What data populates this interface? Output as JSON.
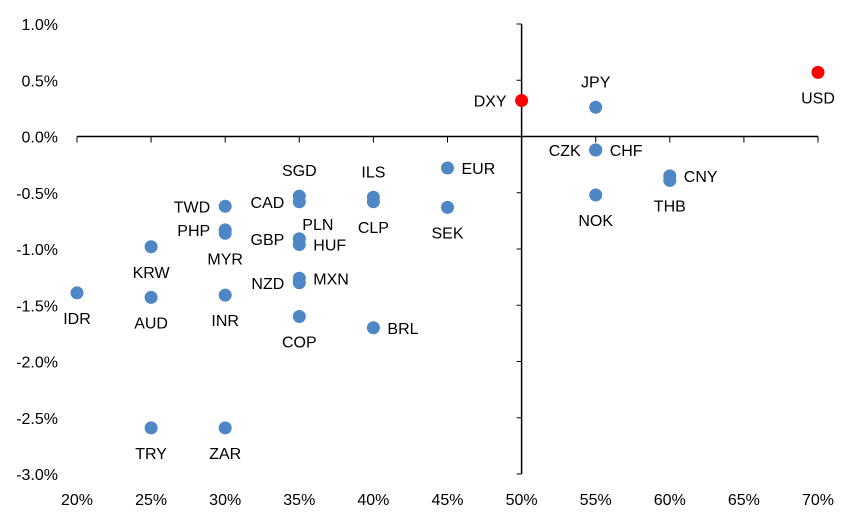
{
  "chart_data": {
    "type": "scatter",
    "title": "",
    "xlabel": "",
    "ylabel": "",
    "xlim": [
      20,
      70
    ],
    "ylim": [
      -3.0,
      1.0
    ],
    "x_ticks": [
      20,
      25,
      30,
      35,
      40,
      45,
      50,
      55,
      60,
      65,
      70
    ],
    "x_tick_labels": [
      "20%",
      "25%",
      "30%",
      "35%",
      "40%",
      "45%",
      "50%",
      "55%",
      "60%",
      "65%",
      "70%"
    ],
    "y_ticks": [
      1.0,
      0.5,
      0.0,
      -0.5,
      -1.0,
      -1.5,
      -2.0,
      -2.5,
      -3.0
    ],
    "y_tick_labels": [
      "1.0%",
      "0.5%",
      "0.0%",
      "-0.5%",
      "-1.0%",
      "-1.5%",
      "-2.0%",
      "-2.5%",
      "-3.0%"
    ],
    "x_axis_crosses_y": 0.0,
    "y_axis_crosses_x": 50,
    "grid": false,
    "legend": "none",
    "colors": {
      "default": "#4f86c6",
      "highlight": "#ff0000"
    },
    "points": [
      {
        "label": "JPY",
        "x": 55,
        "y": 0.26,
        "highlight": false,
        "label_pos": "above"
      },
      {
        "label": "DXY",
        "x": 50,
        "y": 0.32,
        "highlight": true,
        "label_pos": "left"
      },
      {
        "label": "USD",
        "x": 70,
        "y": 0.57,
        "highlight": true,
        "label_pos": "below"
      },
      {
        "label": "CZK",
        "x": 55,
        "y": -0.12,
        "highlight": false,
        "label_pos": "left"
      },
      {
        "label": "CHF",
        "x": 55,
        "y": -0.12,
        "highlight": false,
        "label_pos": "right"
      },
      {
        "label": "CNY",
        "x": 60,
        "y": -0.35,
        "highlight": false,
        "label_pos": "right"
      },
      {
        "label": "THB",
        "x": 60,
        "y": -0.39,
        "highlight": false,
        "label_pos": "below"
      },
      {
        "label": "NOK",
        "x": 55,
        "y": -0.52,
        "highlight": false,
        "label_pos": "below"
      },
      {
        "label": "EUR",
        "x": 45,
        "y": -0.28,
        "highlight": false,
        "label_pos": "right"
      },
      {
        "label": "SEK",
        "x": 45,
        "y": -0.63,
        "highlight": false,
        "label_pos": "below"
      },
      {
        "label": "ILS",
        "x": 40,
        "y": -0.54,
        "highlight": false,
        "label_pos": "above"
      },
      {
        "label": "CLP",
        "x": 40,
        "y": -0.58,
        "highlight": false,
        "label_pos": "below"
      },
      {
        "label": "SGD",
        "x": 35,
        "y": -0.53,
        "highlight": false,
        "label_pos": "above"
      },
      {
        "label": "CAD",
        "x": 35,
        "y": -0.58,
        "highlight": false,
        "label_pos": "left"
      },
      {
        "label": "PLN",
        "x": 35,
        "y": -0.91,
        "highlight": false,
        "label_pos": "above-right"
      },
      {
        "label": "GBP",
        "x": 35,
        "y": -0.91,
        "highlight": false,
        "label_pos": "left"
      },
      {
        "label": "HUF",
        "x": 35,
        "y": -0.96,
        "highlight": false,
        "label_pos": "right"
      },
      {
        "label": "MXN",
        "x": 35,
        "y": -1.26,
        "highlight": false,
        "label_pos": "right"
      },
      {
        "label": "NZD",
        "x": 35,
        "y": -1.3,
        "highlight": false,
        "label_pos": "left"
      },
      {
        "label": "COP",
        "x": 35,
        "y": -1.6,
        "highlight": false,
        "label_pos": "below"
      },
      {
        "label": "BRL",
        "x": 40,
        "y": -1.7,
        "highlight": false,
        "label_pos": "right"
      },
      {
        "label": "TWD",
        "x": 30,
        "y": -0.62,
        "highlight": false,
        "label_pos": "left"
      },
      {
        "label": "PHP",
        "x": 30,
        "y": -0.83,
        "highlight": false,
        "label_pos": "left"
      },
      {
        "label": "MYR",
        "x": 30,
        "y": -0.86,
        "highlight": false,
        "label_pos": "below"
      },
      {
        "label": "INR",
        "x": 30,
        "y": -1.41,
        "highlight": false,
        "label_pos": "below"
      },
      {
        "label": "KRW",
        "x": 25,
        "y": -0.98,
        "highlight": false,
        "label_pos": "below"
      },
      {
        "label": "AUD",
        "x": 25,
        "y": -1.43,
        "highlight": false,
        "label_pos": "below"
      },
      {
        "label": "IDR",
        "x": 20,
        "y": -1.39,
        "highlight": false,
        "label_pos": "below"
      },
      {
        "label": "TRY",
        "x": 25,
        "y": -2.59,
        "highlight": false,
        "label_pos": "below"
      },
      {
        "label": "ZAR",
        "x": 30,
        "y": -2.59,
        "highlight": false,
        "label_pos": "below"
      }
    ]
  }
}
